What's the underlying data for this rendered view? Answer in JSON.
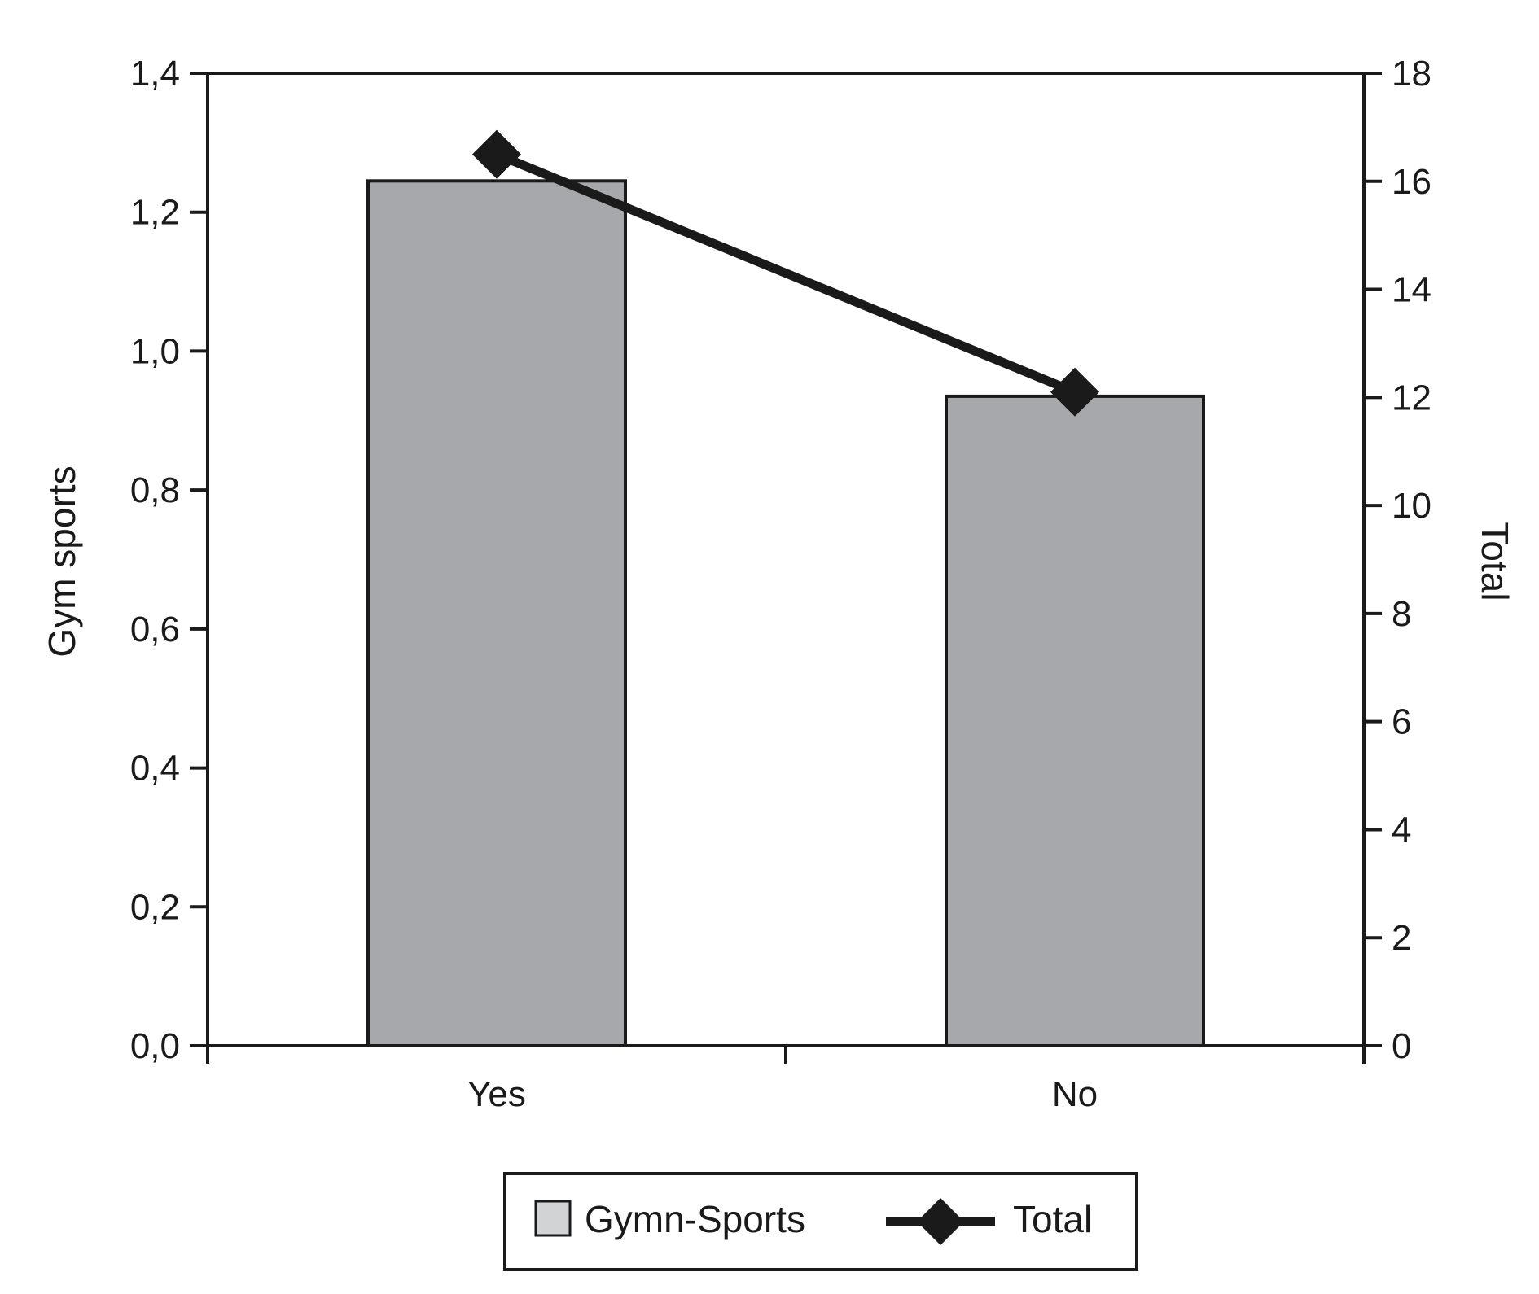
{
  "chart_data": {
    "type": "bar",
    "categories": [
      "Yes",
      "No"
    ],
    "series": [
      {
        "name": "Gymn-Sports",
        "kind": "bar",
        "axis": "left",
        "values": [
          1.245,
          0.935
        ],
        "color": "#a7a8ab"
      },
      {
        "name": "Total",
        "kind": "line",
        "axis": "right",
        "marker": "diamond",
        "values": [
          16.5,
          12.1
        ],
        "color": "#1a1a1a"
      }
    ],
    "xlabel": "",
    "ylabel": "Gym sports",
    "ylabel_right": "Total",
    "ylim": [
      0,
      1.4
    ],
    "ylim_right": [
      0,
      18
    ],
    "yticks": [
      "0,0",
      "0,2",
      "0,4",
      "0,6",
      "0,8",
      "1,0",
      "1,2",
      "1,4"
    ],
    "yticks_right": [
      "0",
      "2",
      "4",
      "6",
      "8",
      "10",
      "12",
      "14",
      "16",
      "18"
    ],
    "grid": false,
    "legend": {
      "position": "bottom-center",
      "entries": [
        {
          "label": "Gymn-Sports",
          "symbol": "box-icon"
        },
        {
          "label": "Total",
          "symbol": "line-diamond-icon"
        }
      ]
    }
  }
}
